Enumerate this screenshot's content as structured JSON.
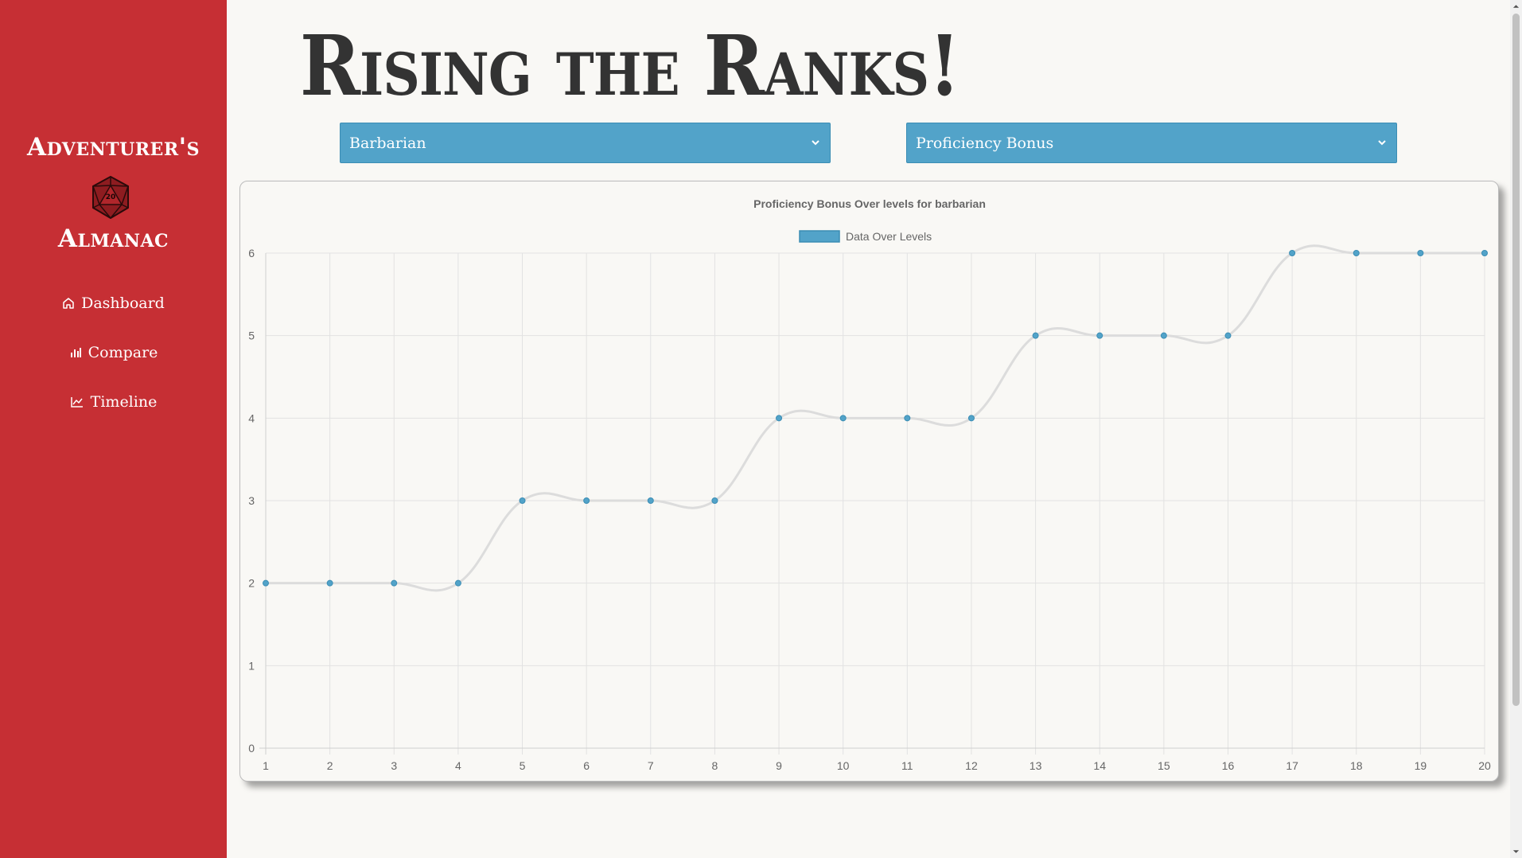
{
  "sidebar": {
    "brand_top": "Adventurer's",
    "brand_bottom": "Almanac",
    "dice_label": "20",
    "nav": [
      {
        "label": "Dashboard",
        "icon": "home-icon"
      },
      {
        "label": "Compare",
        "icon": "bar-chart-icon"
      },
      {
        "label": "Timeline",
        "icon": "line-chart-icon"
      }
    ]
  },
  "header": {
    "title": "Rising the Ranks!"
  },
  "filters": {
    "class_select": {
      "value": "Barbarian"
    },
    "stat_select": {
      "value": "Proficiency Bonus"
    }
  },
  "colors": {
    "sidebar": "#c62f34",
    "accent": "#52a3c9",
    "line": "#dcdcdc",
    "point": "#52a3c9"
  },
  "chart_data": {
    "type": "line",
    "title": "Proficiency Bonus Over levels for barbarian",
    "legend_position": "top-center",
    "grid": true,
    "x": [
      1,
      2,
      3,
      4,
      5,
      6,
      7,
      8,
      9,
      10,
      11,
      12,
      13,
      14,
      15,
      16,
      17,
      18,
      19,
      20
    ],
    "ylim": [
      0,
      6
    ],
    "yticks": [
      0,
      1,
      2,
      3,
      4,
      5,
      6
    ],
    "series": [
      {
        "name": "Data Over Levels",
        "values": [
          2,
          2,
          2,
          2,
          3,
          3,
          3,
          3,
          4,
          4,
          4,
          4,
          5,
          5,
          5,
          5,
          6,
          6,
          6,
          6
        ]
      }
    ]
  }
}
